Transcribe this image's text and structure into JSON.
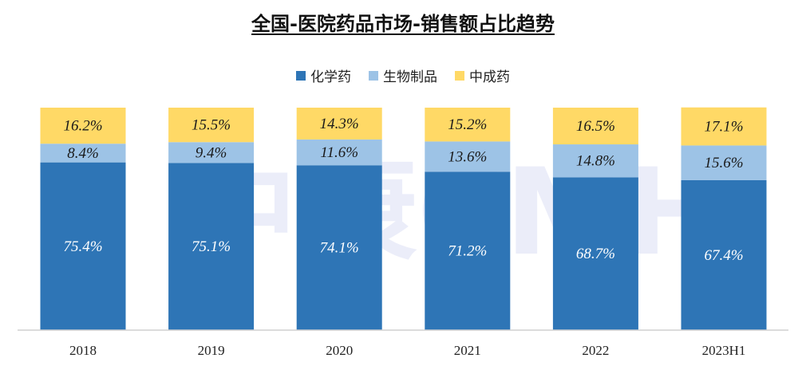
{
  "chart_data": {
    "type": "bar",
    "stacked": true,
    "percent_stacked": true,
    "title": "全国-医院药品市场-销售额占比趋势",
    "categories": [
      "2018",
      "2019",
      "2020",
      "2021",
      "2022",
      "2023H1"
    ],
    "series": [
      {
        "name": "化学药",
        "color": "#2E75B6",
        "values": [
          75.4,
          75.1,
          74.1,
          71.2,
          68.7,
          67.4
        ],
        "labels": [
          "75.4%",
          "75.1%",
          "74.1%",
          "71.2%",
          "68.7%",
          "67.4%"
        ]
      },
      {
        "name": "生物制品",
        "color": "#9DC3E6",
        "values": [
          8.4,
          9.4,
          11.6,
          13.6,
          14.8,
          15.6
        ],
        "labels": [
          "8.4%",
          "9.4%",
          "11.6%",
          "13.6%",
          "14.8%",
          "15.6%"
        ]
      },
      {
        "name": "中成药",
        "color": "#FFD966",
        "values": [
          16.2,
          15.5,
          14.3,
          15.2,
          16.5,
          17.1
        ],
        "labels": [
          "16.2%",
          "15.5%",
          "14.3%",
          "15.2%",
          "16.5%",
          "17.1%"
        ]
      }
    ],
    "ylim": [
      0,
      100
    ],
    "grid": false,
    "legend_position": "top",
    "watermark": "中康CMH"
  }
}
